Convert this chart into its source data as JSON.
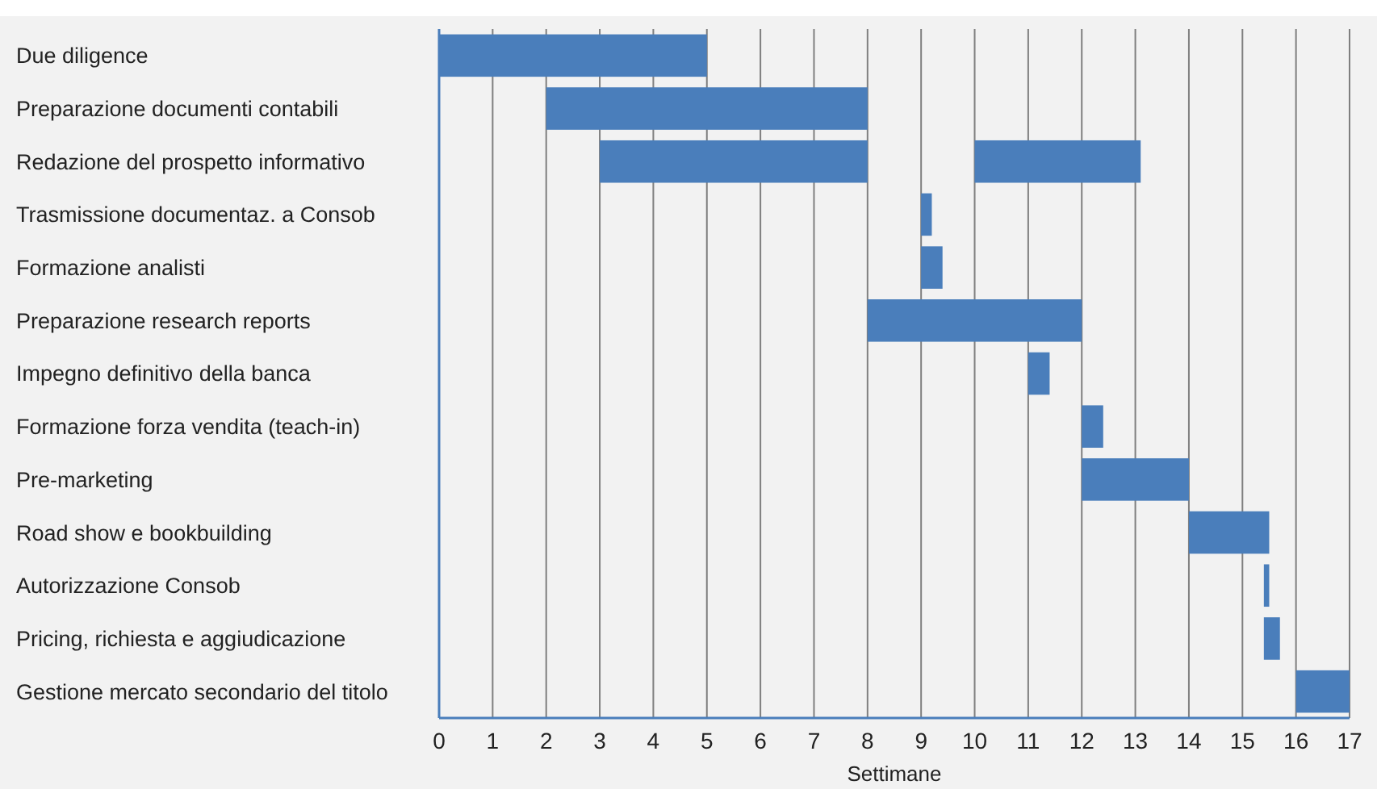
{
  "chart_data": {
    "type": "bar",
    "orientation": "horizontal",
    "xlabel": "Settimane",
    "categories": [
      "Due diligence",
      "Preparazione documenti contabili",
      "Redazione del prospetto informativo",
      "Trasmissione documentaz. a Consob",
      "Formazione analisti",
      "Preparazione research reports",
      "Impegno definitivo della banca",
      "Formazione forza vendita (teach-in)",
      "Pre-marketing",
      "Road show e bookbuilding",
      "Autorizzazione Consob",
      "Pricing, richiesta e aggiudicazione",
      "Gestione mercato secondario del titolo"
    ],
    "series": [
      {
        "color": "#4a7ebb",
        "base": [
          0,
          2,
          3,
          9,
          9,
          8,
          11,
          12,
          12,
          14,
          15.4,
          15.4,
          16
        ],
        "values": [
          5,
          6,
          5,
          0.2,
          0.4,
          4,
          0.4,
          0.4,
          2,
          1.5,
          0.1,
          0.3,
          1
        ]
      },
      {
        "color": "#4a7ebb",
        "base": [
          null,
          null,
          10,
          null,
          null,
          null,
          null,
          null,
          null,
          null,
          null,
          null,
          null
        ],
        "values": [
          null,
          null,
          3.1,
          null,
          null,
          null,
          null,
          null,
          null,
          null,
          null,
          null,
          null
        ]
      }
    ],
    "xlim": [
      0,
      17
    ],
    "xticks": [
      0,
      1,
      2,
      3,
      4,
      5,
      6,
      7,
      8,
      9,
      10,
      11,
      12,
      13,
      14,
      15,
      16,
      17
    ],
    "grid": "x"
  }
}
